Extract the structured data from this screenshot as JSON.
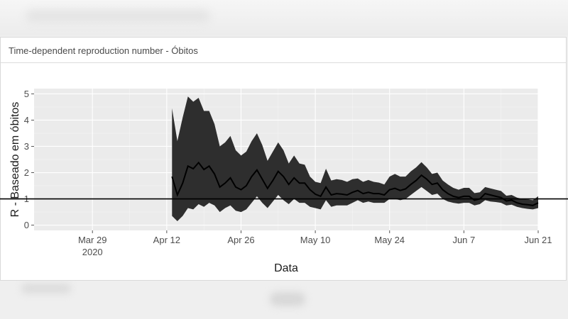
{
  "card": {
    "title": "Time-dependent reproduction number - Óbitos"
  },
  "chart_data": {
    "type": "line",
    "title": "",
    "xlabel": "Data",
    "ylabel": "R - Baseado em óbitos",
    "x_start": "2020-03-18",
    "x_end": "2020-06-21",
    "ylim": [
      -0.2,
      5.2
    ],
    "x_ticks": [
      {
        "date": "2020-03-29",
        "label": "Mar 29",
        "sublabel": "2020"
      },
      {
        "date": "2020-04-12",
        "label": "Apr 12",
        "sublabel": ""
      },
      {
        "date": "2020-04-26",
        "label": "Apr 26",
        "sublabel": ""
      },
      {
        "date": "2020-05-10",
        "label": "May 10",
        "sublabel": ""
      },
      {
        "date": "2020-05-24",
        "label": "May 24",
        "sublabel": ""
      },
      {
        "date": "2020-06-07",
        "label": "Jun 7",
        "sublabel": ""
      },
      {
        "date": "2020-06-21",
        "label": "Jun 21",
        "sublabel": ""
      }
    ],
    "y_ticks": [
      0,
      1,
      2,
      3,
      4,
      5
    ],
    "reference_line": 1,
    "grid": true,
    "series": [
      {
        "dates": [
          "2020-04-13",
          "2020-04-14",
          "2020-04-15",
          "2020-04-16",
          "2020-04-17",
          "2020-04-18",
          "2020-04-19",
          "2020-04-20",
          "2020-04-21",
          "2020-04-22",
          "2020-04-23",
          "2020-04-24",
          "2020-04-25",
          "2020-04-26",
          "2020-04-27",
          "2020-04-28",
          "2020-04-29",
          "2020-04-30",
          "2020-05-01",
          "2020-05-02",
          "2020-05-03",
          "2020-05-04",
          "2020-05-05",
          "2020-05-06",
          "2020-05-07",
          "2020-05-08",
          "2020-05-09",
          "2020-05-10",
          "2020-05-11",
          "2020-05-12",
          "2020-05-13",
          "2020-05-14",
          "2020-05-15",
          "2020-05-16",
          "2020-05-17",
          "2020-05-18",
          "2020-05-19",
          "2020-05-20",
          "2020-05-21",
          "2020-05-22",
          "2020-05-23",
          "2020-05-24",
          "2020-05-25",
          "2020-05-26",
          "2020-05-27",
          "2020-05-28",
          "2020-05-29",
          "2020-05-30",
          "2020-05-31",
          "2020-06-01",
          "2020-06-02",
          "2020-06-03",
          "2020-06-04",
          "2020-06-05",
          "2020-06-06",
          "2020-06-07",
          "2020-06-08",
          "2020-06-09",
          "2020-06-10",
          "2020-06-11",
          "2020-06-12",
          "2020-06-13",
          "2020-06-14",
          "2020-06-15",
          "2020-06-16",
          "2020-06-17",
          "2020-06-18",
          "2020-06-19",
          "2020-06-20",
          "2020-06-21"
        ],
        "mean": [
          1.85,
          1.15,
          1.6,
          2.25,
          2.15,
          2.38,
          2.12,
          2.25,
          1.95,
          1.45,
          1.6,
          1.8,
          1.45,
          1.35,
          1.5,
          1.85,
          2.1,
          1.75,
          1.4,
          1.7,
          2.05,
          1.85,
          1.55,
          1.8,
          1.6,
          1.6,
          1.35,
          1.18,
          1.1,
          1.45,
          1.15,
          1.2,
          1.18,
          1.15,
          1.25,
          1.32,
          1.2,
          1.25,
          1.2,
          1.2,
          1.15,
          1.35,
          1.4,
          1.32,
          1.38,
          1.55,
          1.7,
          1.9,
          1.75,
          1.55,
          1.6,
          1.35,
          1.2,
          1.1,
          1.05,
          1.1,
          1.1,
          0.95,
          1.0,
          1.2,
          1.15,
          1.1,
          1.05,
          0.92,
          0.95,
          0.85,
          0.8,
          0.78,
          0.75,
          0.85
        ],
        "lower": [
          0.35,
          0.15,
          0.35,
          0.65,
          0.6,
          0.8,
          0.7,
          0.85,
          0.75,
          0.5,
          0.65,
          0.75,
          0.55,
          0.5,
          0.6,
          0.85,
          1.1,
          0.85,
          0.65,
          0.9,
          1.15,
          0.95,
          0.8,
          1.0,
          0.85,
          0.85,
          0.7,
          0.65,
          0.6,
          0.95,
          0.7,
          0.75,
          0.75,
          0.75,
          0.85,
          0.95,
          0.85,
          0.9,
          0.85,
          0.85,
          0.85,
          1.0,
          1.0,
          0.95,
          1.0,
          1.15,
          1.3,
          1.45,
          1.3,
          1.15,
          1.2,
          1.0,
          0.9,
          0.85,
          0.82,
          0.85,
          0.85,
          0.75,
          0.8,
          0.95,
          0.9,
          0.88,
          0.85,
          0.75,
          0.78,
          0.7,
          0.65,
          0.62,
          0.6,
          0.65
        ],
        "upper": [
          4.45,
          3.2,
          4.1,
          4.9,
          4.7,
          4.85,
          4.35,
          4.35,
          3.85,
          3.0,
          3.15,
          3.4,
          2.85,
          2.65,
          2.8,
          3.2,
          3.5,
          3.05,
          2.45,
          2.8,
          3.15,
          2.85,
          2.35,
          2.65,
          2.35,
          2.3,
          1.85,
          1.65,
          1.6,
          2.15,
          1.7,
          1.75,
          1.72,
          1.65,
          1.75,
          1.78,
          1.65,
          1.72,
          1.65,
          1.62,
          1.55,
          1.85,
          1.95,
          1.85,
          1.85,
          2.05,
          2.2,
          2.4,
          2.2,
          1.95,
          2.0,
          1.7,
          1.55,
          1.42,
          1.35,
          1.42,
          1.42,
          1.22,
          1.25,
          1.45,
          1.4,
          1.35,
          1.3,
          1.12,
          1.15,
          1.05,
          1.0,
          0.98,
          0.95,
          1.1
        ]
      }
    ]
  }
}
